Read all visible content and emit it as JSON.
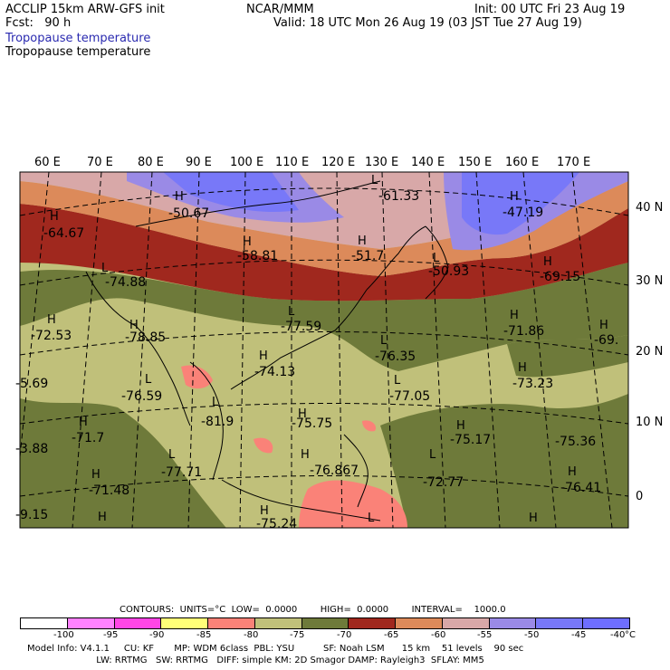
{
  "header": {
    "model": "ACCLIP 15km ARW-GFS init",
    "forecast": "Fcst:   90 h",
    "org": "NCAR/MMM",
    "init": "Init: 00 UTC Fri 23 Aug 19",
    "valid": "Valid: 18 UTC Mon 26 Aug 19 (03 JST Tue 27 Aug 19)",
    "field_blue": "Tropopause temperature",
    "field_black": "Tropopause temperature"
  },
  "axes": {
    "longitudes": [
      "60 E",
      "70 E",
      "80 E",
      "90 E",
      "100 E",
      "110 E",
      "120 E",
      "130 E",
      "140 E",
      "150 E",
      "160 E",
      "170 E"
    ],
    "latitudes": [
      "40 N",
      "30 N",
      "20 N",
      "10 N",
      "0"
    ]
  },
  "map_labels": {
    "values": [
      "-64.67",
      "-50.67",
      "-58.81",
      "-51.7",
      "-61.33",
      "-50.93",
      "-47.19",
      "-69.15",
      "-74.88",
      "-72.53",
      "-78.85",
      "-77.59",
      "-71.86",
      "-69.",
      "-74.13",
      "-76.35",
      "-73.23",
      "-76.59",
      "-5.69",
      "-77.05",
      "-81.9",
      "-75.75",
      "-75.17",
      "-75.36",
      "-71.7",
      "-3.88",
      "-77.71",
      "-76.867",
      "-72.77",
      "-76.41",
      "-71.48",
      "-9.15",
      "-75.24"
    ],
    "highs": [
      "H",
      "H",
      "H",
      "H",
      "H",
      "H",
      "H",
      "H",
      "H",
      "H",
      "H",
      "H",
      "H",
      "H",
      "H",
      "H",
      "H",
      "H",
      "H",
      "H",
      "H"
    ],
    "lows": [
      "L",
      "L",
      "L",
      "L",
      "L",
      "L",
      "L",
      "L",
      "L",
      "L",
      "L"
    ]
  },
  "legend": {
    "contours_line": "CONTOURS:  UNITS=°C  LOW=  0.0000        HIGH=  0.0000        INTERVAL=    1000.0",
    "ticks": [
      "-100",
      "-95",
      "-90",
      "-85",
      "-80",
      "-75",
      "-70",
      "-65",
      "-60",
      "-55",
      "-50",
      "-45",
      "-40",
      "°C"
    ],
    "colors": [
      "#ffffff",
      "#ff82ff",
      "#ff46e6",
      "#ffff78",
      "#fa8278",
      "#c0c07a",
      "#6e7a3a",
      "#a0281e",
      "#dc8a5a",
      "#d8a8a8",
      "#9a8ae6",
      "#7878f8",
      "#6e6eff"
    ]
  },
  "footer": {
    "line1": "Model Info: V4.1.1     CU: KF       MP: WDM 6class  PBL: YSU          SF: Noah LSM      15 km    51 levels    90 sec",
    "line2": "                        LW: RRTMG   SW: RRTMG   DIFF: simple KM: 2D Smagor DAMP: Rayleigh3  SFLAY: MM5"
  }
}
